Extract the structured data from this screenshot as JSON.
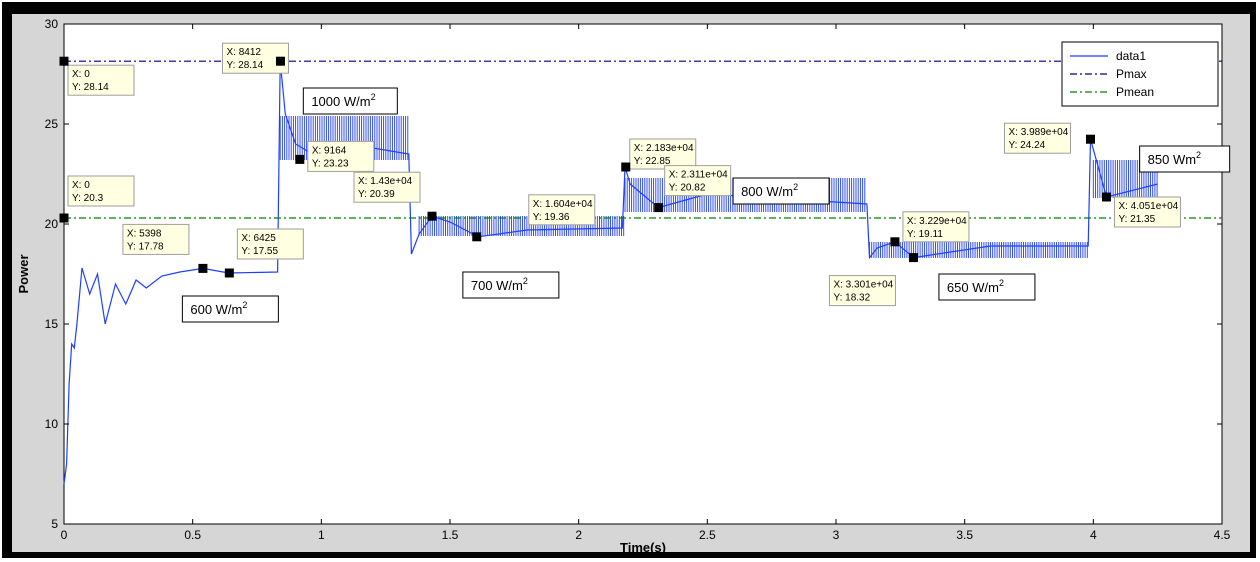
{
  "chart_data": {
    "type": "line",
    "title": "",
    "xlabel": "Time(s)",
    "ylabel": "Power",
    "xlim": [
      0,
      4.5
    ],
    "ylim": [
      5,
      30
    ],
    "xticks": [
      "0",
      "0.5",
      "1",
      "1.5",
      "2",
      "2.5",
      "3",
      "3.5",
      "4",
      "4.5"
    ],
    "yticks": [
      "5",
      "10",
      "15",
      "20",
      "25",
      "30"
    ],
    "grid": false,
    "legend_position": "top-right",
    "legend": [
      "data1",
      "Pmax",
      "Pmean"
    ],
    "colors": {
      "data1": "#1f3fff",
      "Pmax": "#000080",
      "Pmean": "#008000"
    },
    "series": [
      {
        "name": "data1",
        "x": [
          0,
          0.01,
          0.02,
          0.03,
          0.04,
          0.05,
          0.07,
          0.1,
          0.13,
          0.16,
          0.2,
          0.24,
          0.28,
          0.32,
          0.38,
          0.45,
          0.54,
          0.64,
          0.83,
          0.84,
          0.86,
          0.9,
          1.0,
          1.2,
          1.34,
          1.35,
          1.38,
          1.43,
          1.5,
          1.61,
          1.8,
          2.17,
          2.18,
          2.2,
          2.31,
          2.5,
          3.12,
          3.13,
          3.16,
          3.229,
          3.301,
          3.6,
          3.98,
          3.989,
          4.02,
          4.051,
          4.25
        ],
        "y": [
          7,
          8,
          12,
          14,
          13.8,
          15,
          17.8,
          16.5,
          17.5,
          15,
          17,
          16,
          17.2,
          16.8,
          17.4,
          17.6,
          17.78,
          17.55,
          17.6,
          28.14,
          25.5,
          24,
          23.23,
          23.8,
          23.5,
          18.5,
          19.5,
          20.39,
          20.1,
          19.36,
          19.7,
          19.8,
          22.85,
          22,
          20.82,
          21.5,
          21,
          18.32,
          18.8,
          19.11,
          18.32,
          18.9,
          18.9,
          24.24,
          22.8,
          21.35,
          22
        ]
      },
      {
        "name": "Pmax",
        "x": [
          0,
          4.5
        ],
        "y": [
          28.14,
          28.14
        ]
      },
      {
        "name": "Pmean",
        "x": [
          0,
          4.5
        ],
        "y": [
          20.3,
          20.3
        ]
      }
    ],
    "band_segments": [
      {
        "x0": 0.84,
        "x1": 1.34,
        "low": 23.2,
        "high": 25.4
      },
      {
        "x0": 1.38,
        "x1": 2.18,
        "low": 19.4,
        "high": 20.4
      },
      {
        "x0": 2.18,
        "x1": 3.12,
        "low": 20.6,
        "high": 22.3
      },
      {
        "x0": 3.13,
        "x1": 3.98,
        "low": 18.3,
        "high": 19.1
      },
      {
        "x0": 4.0,
        "x1": 4.25,
        "low": 21.3,
        "high": 23.2
      }
    ],
    "datatips": [
      {
        "x": 0,
        "y": 20.3,
        "label_x": "X: 0",
        "label_y": "Y: 20.3"
      },
      {
        "x": 0,
        "y": 28.14,
        "label_x": "X: 0",
        "label_y": "Y: 28.14"
      },
      {
        "x": 0.5398,
        "y": 17.78,
        "label_x": "X: 5398",
        "label_y": "Y: 17.78"
      },
      {
        "x": 0.6425,
        "y": 17.55,
        "label_x": "X: 6425",
        "label_y": "Y: 17.55"
      },
      {
        "x": 0.8412,
        "y": 28.14,
        "label_x": "X: 8412",
        "label_y": "Y: 28.14"
      },
      {
        "x": 0.9164,
        "y": 23.23,
        "label_x": "X: 9164",
        "label_y": "Y: 23.23"
      },
      {
        "x": 1.43,
        "y": 20.39,
        "label_x": "X: 1.43e+04",
        "label_y": "Y: 20.39"
      },
      {
        "x": 1.604,
        "y": 19.36,
        "label_x": "X: 1.604e+04",
        "label_y": "Y: 19.36"
      },
      {
        "x": 2.183,
        "y": 22.85,
        "label_x": "X: 2.183e+04",
        "label_y": "Y: 22.85"
      },
      {
        "x": 2.311,
        "y": 20.82,
        "label_x": "X: 2.311e+04",
        "label_y": "Y: 20.82"
      },
      {
        "x": 3.229,
        "y": 19.11,
        "label_x": "X: 3.229e+04",
        "label_y": "Y: 19.11"
      },
      {
        "x": 3.301,
        "y": 18.32,
        "label_x": "X: 3.301e+04",
        "label_y": "Y: 18.32"
      },
      {
        "x": 3.989,
        "y": 24.24,
        "label_x": "X: 3.989e+04",
        "label_y": "Y: 24.24"
      },
      {
        "x": 4.051,
        "y": 21.35,
        "label_x": "X: 4.051e+04",
        "label_y": "Y: 21.35"
      }
    ],
    "annotations": [
      {
        "text": "1000 W/m",
        "sup": "2"
      },
      {
        "text": "600 W/m",
        "sup": "2"
      },
      {
        "text": "700 W/m",
        "sup": "2"
      },
      {
        "text": "800 W/m",
        "sup": "2"
      },
      {
        "text": "650 W/m",
        "sup": "2"
      },
      {
        "text": "850 Wm",
        "sup": "2"
      }
    ]
  }
}
